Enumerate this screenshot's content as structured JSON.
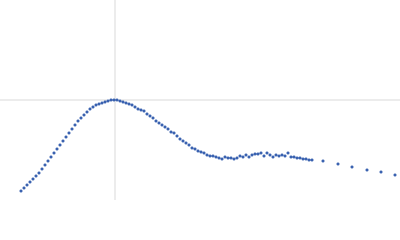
{
  "chart_data": {
    "type": "scatter",
    "color": "#3a62b0",
    "xlim": [
      0,
      400
    ],
    "ylim": [
      0,
      200
    ],
    "xref": 115,
    "yref": 100,
    "ref_color": "#d9d9d9",
    "x": [
      21,
      24,
      27,
      30,
      33,
      36,
      39,
      42,
      45,
      48,
      51,
      54,
      57,
      60,
      63,
      66,
      69,
      72,
      75,
      78,
      81,
      84,
      87,
      90,
      93,
      96,
      99,
      102,
      105,
      108,
      111,
      114,
      117,
      120,
      123,
      126,
      129,
      132,
      135,
      138,
      141,
      144,
      147,
      150,
      153,
      156,
      159,
      162,
      165,
      168,
      171,
      174,
      177,
      180,
      183,
      186,
      189,
      192,
      195,
      198,
      201,
      204,
      207,
      210,
      213,
      216,
      219,
      222,
      225,
      228,
      231,
      234,
      237,
      240,
      243,
      246,
      249,
      252,
      255,
      258,
      261,
      264,
      267,
      270,
      273,
      276,
      279,
      282,
      285,
      288,
      291,
      294,
      297,
      300,
      303,
      306,
      309,
      312,
      323,
      338,
      352,
      367,
      381,
      395
    ],
    "y": [
      9,
      12,
      15,
      18,
      21,
      24,
      27,
      31,
      35,
      39,
      43,
      47,
      51,
      55,
      59,
      63,
      67,
      71,
      75,
      79,
      82,
      85,
      88,
      91,
      93,
      95,
      96,
      97,
      98,
      99,
      100,
      100,
      100,
      99,
      98,
      97,
      96,
      95,
      93,
      91,
      90,
      89,
      86,
      84,
      82,
      79,
      77,
      75,
      73,
      71,
      68,
      67,
      64,
      61,
      59,
      57,
      55,
      52,
      51,
      49,
      48,
      47,
      45,
      44,
      44,
      43,
      42,
      41,
      43,
      42,
      42,
      41,
      42,
      44,
      43,
      45,
      43,
      45,
      46,
      46,
      47,
      44,
      47,
      45,
      43,
      45,
      44,
      45,
      44,
      47,
      43,
      43,
      42,
      42,
      41,
      41,
      40,
      40,
      39,
      36,
      33,
      30,
      28,
      25
    ]
  }
}
